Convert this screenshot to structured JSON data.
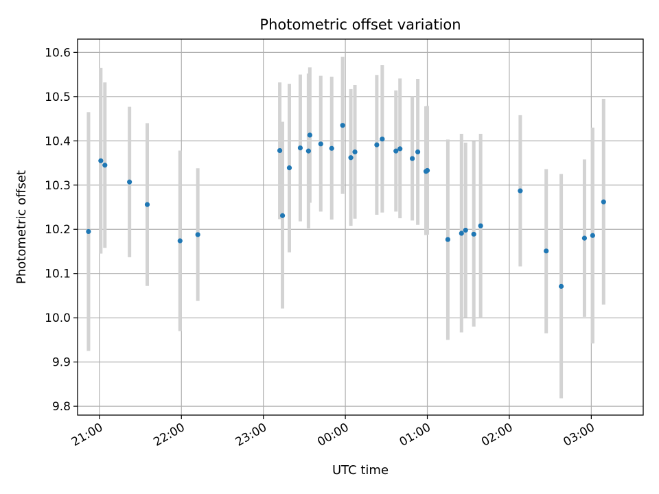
{
  "chart_data": {
    "type": "scatter",
    "title": "Photometric offset variation",
    "xlabel": "UTC time",
    "ylabel": "Photometric offset",
    "x_unit": "UTC time (HH:MM), points after midnight wrap into the next day",
    "xlim": [
      "20:44",
      "03:38"
    ],
    "ylim": [
      9.78,
      10.63
    ],
    "x_ticks": [
      "21:00",
      "22:00",
      "23:00",
      "00:00",
      "01:00",
      "02:00",
      "03:00"
    ],
    "y_ticks": [
      "9.8",
      "9.9",
      "10.0",
      "10.1",
      "10.2",
      "10.3",
      "10.4",
      "10.5",
      "10.6"
    ],
    "grid": true,
    "point_color": "#1f77b4",
    "errorbar_color": "#d3d3d3",
    "points": [
      {
        "t": "20:52",
        "y": 10.195,
        "lo": 9.925,
        "hi": 10.465
      },
      {
        "t": "21:01",
        "y": 10.355,
        "lo": 10.145,
        "hi": 10.565
      },
      {
        "t": "21:04",
        "y": 10.345,
        "lo": 10.158,
        "hi": 10.532
      },
      {
        "t": "21:22",
        "y": 10.307,
        "lo": 10.137,
        "hi": 10.477
      },
      {
        "t": "21:35",
        "y": 10.256,
        "lo": 10.072,
        "hi": 10.44
      },
      {
        "t": "21:59",
        "y": 10.174,
        "lo": 9.97,
        "hi": 10.378
      },
      {
        "t": "22:12",
        "y": 10.188,
        "lo": 10.038,
        "hi": 10.338
      },
      {
        "t": "23:12",
        "y": 10.378,
        "lo": 10.223,
        "hi": 10.532
      },
      {
        "t": "23:14",
        "y": 10.231,
        "lo": 10.021,
        "hi": 10.443
      },
      {
        "t": "23:19",
        "y": 10.339,
        "lo": 10.148,
        "hi": 10.529
      },
      {
        "t": "23:27",
        "y": 10.384,
        "lo": 10.218,
        "hi": 10.55
      },
      {
        "t": "23:33",
        "y": 10.377,
        "lo": 10.202,
        "hi": 10.552
      },
      {
        "t": "23:34",
        "y": 10.413,
        "lo": 10.26,
        "hi": 10.566
      },
      {
        "t": "23:42",
        "y": 10.393,
        "lo": 10.24,
        "hi": 10.547
      },
      {
        "t": "23:50",
        "y": 10.383,
        "lo": 10.222,
        "hi": 10.545
      },
      {
        "t": "23:58",
        "y": 10.435,
        "lo": 10.28,
        "hi": 10.59
      },
      {
        "t": "00:04",
        "y": 10.362,
        "lo": 10.208,
        "hi": 10.517
      },
      {
        "t": "00:07",
        "y": 10.375,
        "lo": 10.224,
        "hi": 10.526
      },
      {
        "t": "00:23",
        "y": 10.391,
        "lo": 10.233,
        "hi": 10.549
      },
      {
        "t": "00:27",
        "y": 10.404,
        "lo": 10.238,
        "hi": 10.571
      },
      {
        "t": "00:37",
        "y": 10.377,
        "lo": 10.24,
        "hi": 10.514
      },
      {
        "t": "00:40",
        "y": 10.382,
        "lo": 10.225,
        "hi": 10.541
      },
      {
        "t": "00:49",
        "y": 10.36,
        "lo": 10.22,
        "hi": 10.5
      },
      {
        "t": "00:53",
        "y": 10.375,
        "lo": 10.21,
        "hi": 10.54
      },
      {
        "t": "00:59",
        "y": 10.331,
        "lo": 10.187,
        "hi": 10.478
      },
      {
        "t": "01:00",
        "y": 10.333,
        "lo": 10.188,
        "hi": 10.479
      },
      {
        "t": "01:15",
        "y": 10.177,
        "lo": 9.95,
        "hi": 10.403
      },
      {
        "t": "01:25",
        "y": 10.191,
        "lo": 9.967,
        "hi": 10.416
      },
      {
        "t": "01:28",
        "y": 10.198,
        "lo": 10.001,
        "hi": 10.396
      },
      {
        "t": "01:34",
        "y": 10.189,
        "lo": 9.98,
        "hi": 10.399
      },
      {
        "t": "01:39",
        "y": 10.208,
        "lo": 10.0,
        "hi": 10.416
      },
      {
        "t": "02:08",
        "y": 10.287,
        "lo": 10.116,
        "hi": 10.458
      },
      {
        "t": "02:27",
        "y": 10.151,
        "lo": 9.965,
        "hi": 10.336
      },
      {
        "t": "02:38",
        "y": 10.071,
        "lo": 9.818,
        "hi": 10.325
      },
      {
        "t": "02:55",
        "y": 10.18,
        "lo": 10.002,
        "hi": 10.358
      },
      {
        "t": "03:01",
        "y": 10.186,
        "lo": 9.942,
        "hi": 10.43
      },
      {
        "t": "03:09",
        "y": 10.262,
        "lo": 10.03,
        "hi": 10.495
      }
    ]
  }
}
